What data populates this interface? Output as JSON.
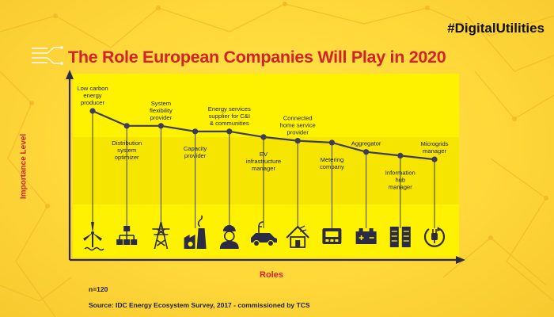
{
  "header": {
    "hashtag": "#DigitalUtilities",
    "title": "The Role European Companies Will Play in 2020"
  },
  "footer": {
    "n": "n=120",
    "source": "Source: IDC Energy Ecosystem Survey, 2017 - commissioned by TCS"
  },
  "colors": {
    "background": "#ffd83a",
    "plot_area": "#fff200",
    "title": "#d0232b",
    "line": "#3c3c5a",
    "icon": "#2b2b45"
  },
  "chart_data": {
    "type": "line",
    "xlabel": "Roles",
    "ylabel": "Importance Level",
    "categories": [
      [
        "Low carbon",
        "energy",
        "producer"
      ],
      [
        "Distribution",
        "system",
        "optimizer"
      ],
      [
        "System",
        "flexibility",
        "provider"
      ],
      [
        "Capacity",
        "provider"
      ],
      [
        "Energy services",
        "supplier for C&I",
        "& communities"
      ],
      [
        "EV",
        "infrastructure",
        "manager"
      ],
      [
        "Connected",
        "home service",
        "provider"
      ],
      [
        "Metering",
        "company"
      ],
      [
        "Aggregator"
      ],
      [
        "Information",
        "hub",
        "manager"
      ],
      [
        "Microgrids",
        "manager"
      ]
    ],
    "label_position": [
      "above",
      "below",
      "above",
      "below",
      "above",
      "below",
      "above",
      "below",
      "above",
      "below",
      "above"
    ],
    "icons": [
      "wind-turbine-icon",
      "network-hierarchy-icon",
      "power-pylon-icon",
      "power-plant-icon",
      "service-worker-icon",
      "electric-car-icon",
      "smart-home-icon",
      "smart-meter-icon",
      "battery-icon",
      "data-server-icon",
      "plug-cycle-icon"
    ],
    "values": [
      8.0,
      7.2,
      7.2,
      6.9,
      6.9,
      6.6,
      6.4,
      6.3,
      5.8,
      5.6,
      5.4
    ],
    "ylim": [
      0,
      10
    ],
    "grid": false,
    "legend": "none"
  }
}
